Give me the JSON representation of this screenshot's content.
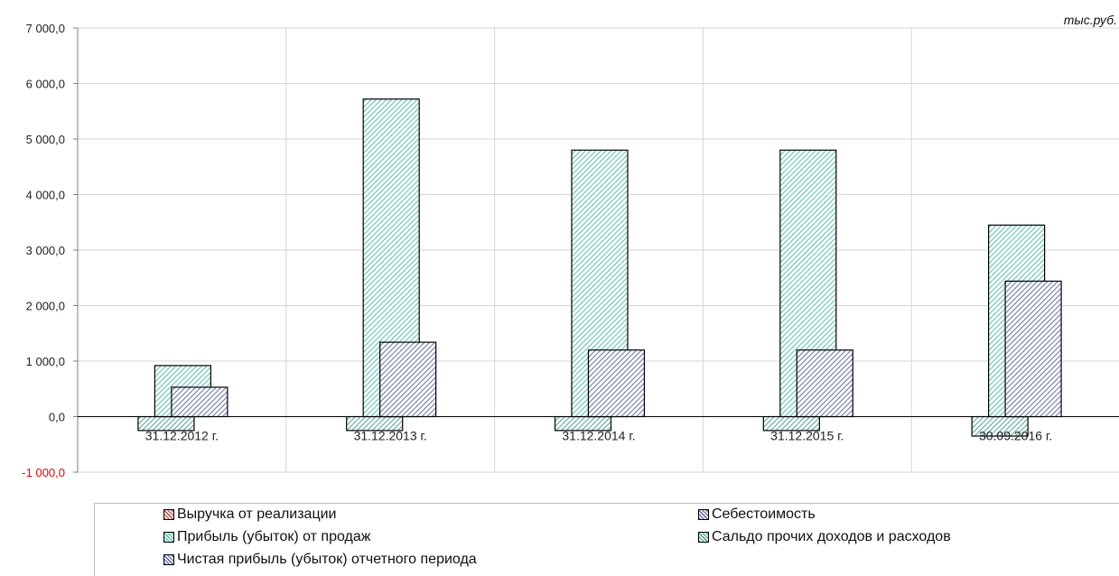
{
  "unit_label": "тыс.руб.",
  "legend": [
    {
      "name": "Выручка от реализации",
      "color": "#c06060"
    },
    {
      "name": "Себестоимость",
      "color": "#6d7aa8"
    },
    {
      "name": "Прибыль (убыток) от продаж",
      "color": "#62c2b4"
    },
    {
      "name": "Сальдо прочих доходов и расходов",
      "color": "#5ba7a0"
    },
    {
      "name": "Чистая прибыль (убыток) отчетного периода",
      "color": "#6d7aa8"
    }
  ],
  "chart_data": {
    "type": "bar",
    "categories": [
      "31.12.2012 г.",
      "31.12.2013 г.",
      "31.12.2014 г.",
      "31.12.2015 г.",
      "30.09.2016 г."
    ],
    "series": [
      {
        "name": "Сальдо прочих доходов и расходов",
        "values": [
          -250,
          -250,
          -250,
          -250,
          -350
        ],
        "color": "#5ba7a0"
      },
      {
        "name": "Прибыль (убыток) от продаж",
        "values": [
          920,
          5720,
          4800,
          4800,
          3450
        ],
        "color": "#62c2b4"
      },
      {
        "name": "Чистая прибыль (убыток) отчетного периода",
        "values": [
          530,
          1340,
          1200,
          1200,
          2440
        ],
        "color": "#6d7aa8"
      }
    ],
    "yticks": [
      {
        "value": 7000,
        "label": "7 000,0"
      },
      {
        "value": 6000,
        "label": "6 000,0"
      },
      {
        "value": 5000,
        "label": "5 000,0"
      },
      {
        "value": 4000,
        "label": "4 000,0"
      },
      {
        "value": 3000,
        "label": "3 000,0"
      },
      {
        "value": 2000,
        "label": "2 000,0"
      },
      {
        "value": 1000,
        "label": "1 000,0"
      },
      {
        "value": 0,
        "label": "0,0"
      },
      {
        "value": -1000,
        "label": "-1 000,0",
        "negative": true
      }
    ],
    "ylim": [
      -1000,
      7000
    ],
    "grid": true
  }
}
